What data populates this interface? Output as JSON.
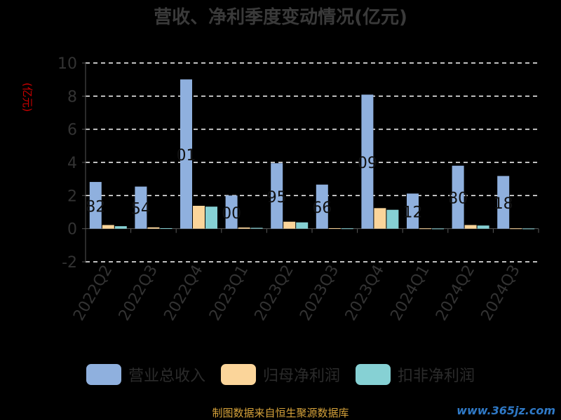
{
  "chart_data": {
    "type": "bar",
    "title": "营收、净利季度变动情况(亿元)",
    "unit_label": "(亿元)",
    "categories": [
      "2022Q2",
      "2022Q3",
      "2022Q4",
      "2023Q1",
      "2023Q2",
      "2023Q3",
      "2023Q4",
      "2024Q1",
      "2024Q2",
      "2024Q3"
    ],
    "series": [
      {
        "name": "营业总收入",
        "color": "#8fb0de",
        "values": [
          2.82,
          2.54,
          9.01,
          2.0,
          3.95,
          2.66,
          8.09,
          2.12,
          3.8,
          3.18
        ]
      },
      {
        "name": "归母净利润",
        "color": "#fbd59a",
        "values": [
          0.22,
          0.08,
          1.38,
          0.07,
          0.42,
          0.03,
          1.24,
          0.02,
          0.22,
          0.02
        ]
      },
      {
        "name": "扣非净利润",
        "color": "#86d1d4",
        "values": [
          0.15,
          0.03,
          1.33,
          0.05,
          0.38,
          0.02,
          1.14,
          0.01,
          0.19,
          0.01
        ]
      }
    ],
    "data_labels": [
      "82",
      "54",
      "01",
      "00",
      "95",
      "66",
      "09",
      "12",
      "80",
      "18"
    ],
    "ylim": [
      -2,
      10
    ],
    "yticks": [
      "10",
      "8",
      "6",
      "4",
      "2",
      "0",
      "-2"
    ],
    "grid": true,
    "legend_position": "bottom"
  },
  "source_text": "制图数据来自恒生聚源数据库",
  "watermark": "www.365jz.com"
}
